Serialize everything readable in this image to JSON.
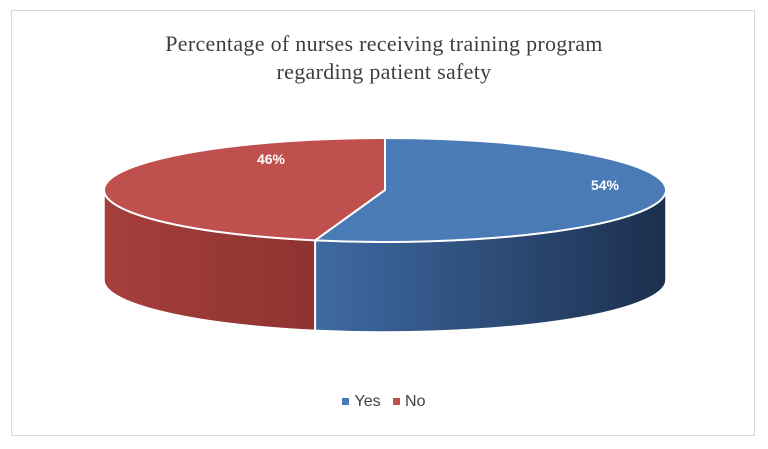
{
  "chart_data": {
    "type": "pie",
    "title_lines": [
      "Percentage of nurses receiving training program",
      "regarding patient safety"
    ],
    "slices": [
      {
        "label": "Yes",
        "value": 54,
        "data_label": "54%",
        "color": "#4a7bb7"
      },
      {
        "label": "No",
        "value": 46,
        "data_label": "46%",
        "color": "#c0504d"
      }
    ],
    "legend_position": "bottom",
    "style": "3d"
  }
}
